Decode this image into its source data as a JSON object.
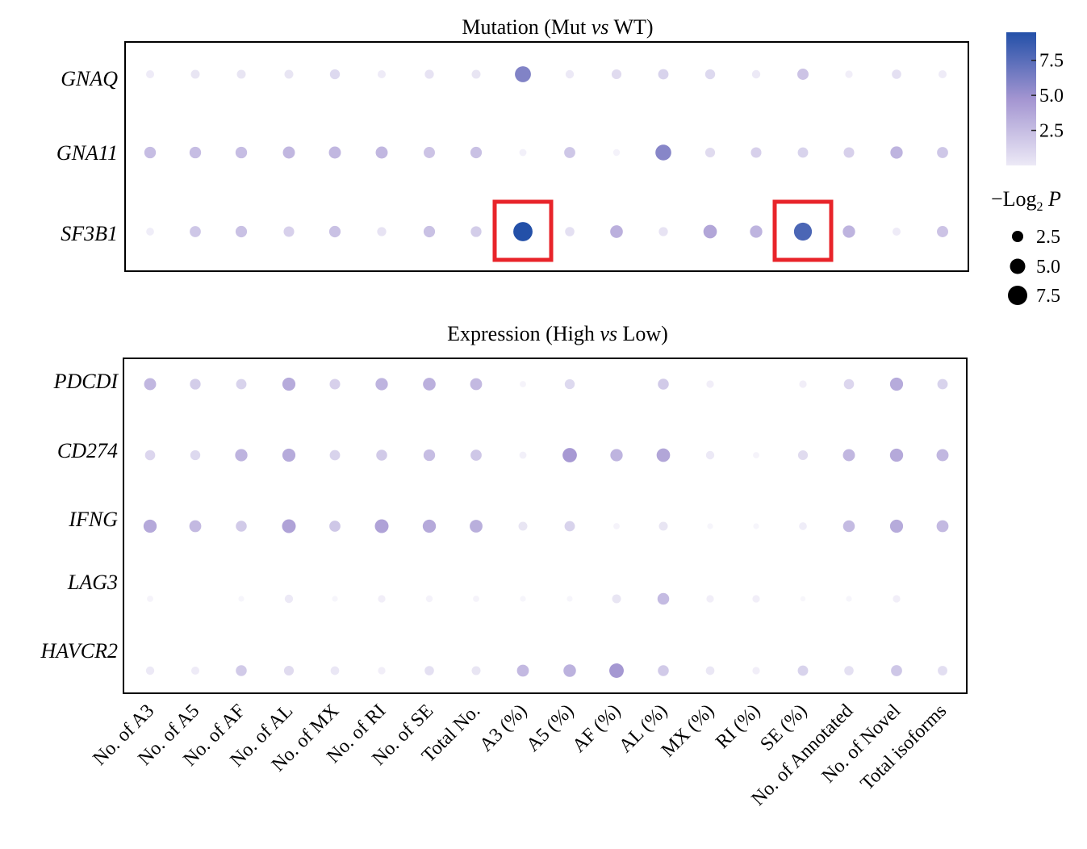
{
  "chart_data": {
    "type": "dot-matrix",
    "categories": [
      "No. of A3",
      "No. of A5",
      "No. of AF",
      "No. of AL",
      "No. of MX",
      "No. of RI",
      "No. of SE",
      "Total No.",
      "A3 (%)",
      "A5 (%)",
      "AF (%)",
      "AL (%)",
      "MX (%)",
      "RI (%)",
      "SE (%)",
      "No. of Annotated",
      "No. of Novel",
      "Total isoforms"
    ],
    "value_metric": "-Log2 P",
    "vmax": 9.5,
    "panels": [
      {
        "title_parts": [
          "Mutation (Mut ",
          "vs",
          " WT)"
        ],
        "genes": [
          "GNAQ",
          "GNA11",
          "SF3B1"
        ],
        "values": [
          [
            0.8,
            1.1,
            1.1,
            1.1,
            1.6,
            0.8,
            1.2,
            1.1,
            6.0,
            0.9,
            1.5,
            1.8,
            1.6,
            0.9,
            2.3,
            0.6,
            1.3,
            0.8
          ],
          [
            2.5,
            2.5,
            2.5,
            2.8,
            2.8,
            2.8,
            2.3,
            2.4,
            0.5,
            2.2,
            0.4,
            5.8,
            1.5,
            1.9,
            1.8,
            1.9,
            3.0,
            2.2
          ],
          [
            0.7,
            2.2,
            2.4,
            1.9,
            2.4,
            1.2,
            2.4,
            2.0,
            9.5,
            1.3,
            3.2,
            1.2,
            3.8,
            3.0,
            8.0,
            3.0,
            0.8,
            2.3
          ]
        ],
        "highlighted": [
          [
            2,
            8
          ],
          [
            2,
            14
          ]
        ],
        "highlight_color": "#e8242a"
      },
      {
        "title_parts": [
          "Expression (High ",
          "vs",
          " Low)"
        ],
        "genes": [
          "PDCDI",
          "CD274",
          "IFNG",
          "LAG3",
          "HAVCR2"
        ],
        "values": [
          [
            2.8,
            2.0,
            1.8,
            3.5,
            1.9,
            3.0,
            3.2,
            2.7,
            0.3,
            1.6,
            0.0,
            2.1,
            0.6,
            0.0,
            0.6,
            1.7,
            3.5,
            1.8
          ],
          [
            1.7,
            1.6,
            3.0,
            3.5,
            1.8,
            2.1,
            2.5,
            2.2,
            0.5,
            4.5,
            3.0,
            3.8,
            0.9,
            0.3,
            1.5,
            2.8,
            3.6,
            2.8
          ],
          [
            3.6,
            2.7,
            2.1,
            4.0,
            2.2,
            4.0,
            3.6,
            3.3,
            1.1,
            1.8,
            0.3,
            1.1,
            0.2,
            0.2,
            0.7,
            2.6,
            3.5,
            2.7
          ],
          [
            0.3,
            0.0,
            0.2,
            0.9,
            0.2,
            0.6,
            0.4,
            0.3,
            0.2,
            0.2,
            1.1,
            2.6,
            0.6,
            0.6,
            0.1,
            0.2,
            0.6,
            0.0
          ],
          [
            0.9,
            0.8,
            2.1,
            1.5,
            1.0,
            0.6,
            1.3,
            1.1,
            2.7,
            3.1,
            4.6,
            2.1,
            1.0,
            0.6,
            1.8,
            1.3,
            2.2,
            1.4
          ]
        ]
      }
    ],
    "colorbar": {
      "ticks": [
        7.5,
        5.0,
        2.5
      ],
      "tick_labels": [
        "7.5",
        "5.0",
        "2.5"
      ],
      "range": [
        0,
        9.5
      ],
      "low_color": "#ece9f6",
      "mid_color": "#a395d1",
      "high_color": "#2350a8"
    },
    "size_legend": {
      "title_prefix": "−Log",
      "title_sub": "2",
      "title_suffix": " P",
      "entries": [
        {
          "label": "2.5",
          "value": 2.5
        },
        {
          "label": "5.0",
          "value": 5.0
        },
        {
          "label": "7.5",
          "value": 7.5
        }
      ]
    }
  }
}
